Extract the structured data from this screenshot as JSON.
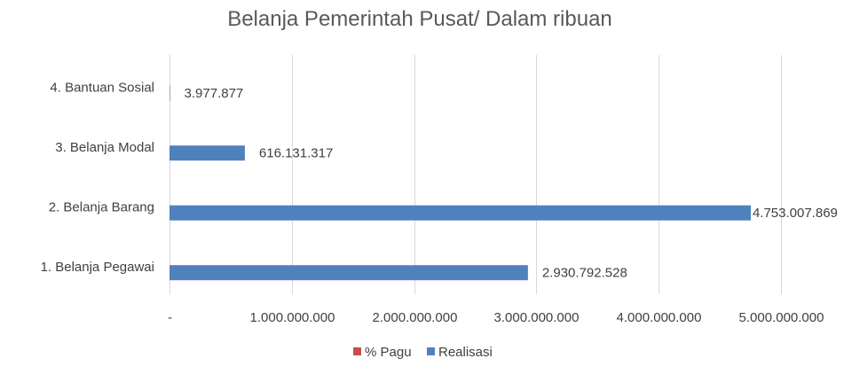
{
  "chart_data": {
    "type": "bar",
    "orientation": "horizontal",
    "title": "Belanja Pemerintah Pusat/ Dalam ribuan",
    "categories": [
      "1. Belanja Pegawai",
      "2. Belanja Barang",
      "3. Belanja Modal",
      "4. Bantuan Sosial"
    ],
    "series": [
      {
        "name": "% Pagu",
        "color": "#c0504d",
        "values": [
          null,
          null,
          null,
          null
        ]
      },
      {
        "name": "Realisasi",
        "color": "#4f81bd",
        "values": [
          2930792528,
          4753007869,
          616131317,
          3977877
        ],
        "labels": [
          "2.930.792.528",
          "4.753.007.869",
          "616.131.317",
          "3.977.877"
        ]
      }
    ],
    "xlim": [
      0,
      5000000000
    ],
    "x_ticks": [
      0,
      1000000000,
      2000000000,
      3000000000,
      4000000000,
      5000000000
    ],
    "x_tick_labels": [
      "-",
      "1.000.000.000",
      "2.000.000.000",
      "3.000.000.000",
      "4.000.000.000",
      "5.000.000.000"
    ],
    "grid": true,
    "legend_position": "bottom",
    "gridline_color": "#d9d9d9"
  }
}
